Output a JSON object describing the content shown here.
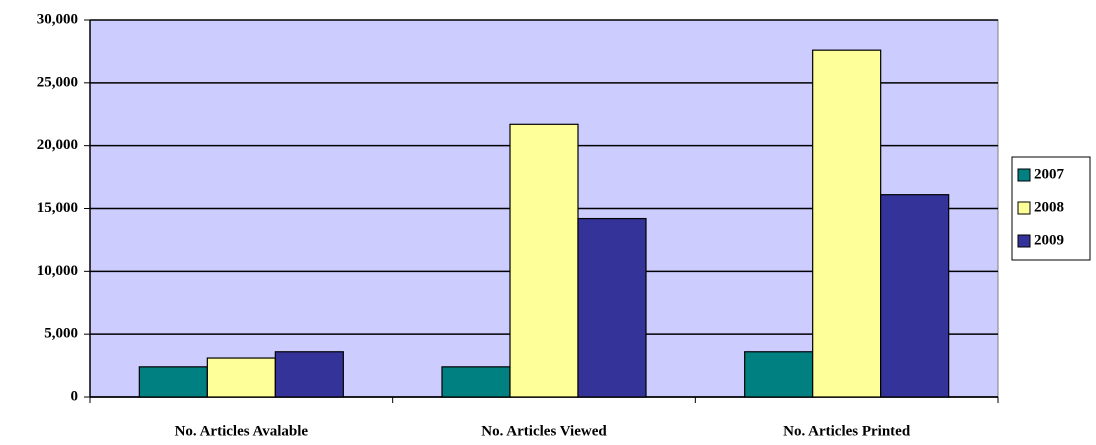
{
  "chart_data": {
    "type": "bar",
    "categories": [
      "No. Articles Avalable",
      "No. Articles Viewed",
      "No. Articles Printed"
    ],
    "series": [
      {
        "name": "2007",
        "color": "#008080",
        "values": [
          2400,
          2400,
          3600
        ]
      },
      {
        "name": "2008",
        "color": "#ffff99",
        "values": [
          3100,
          21700,
          27600
        ]
      },
      {
        "name": "2009",
        "color": "#333399",
        "values": [
          3600,
          14200,
          16100
        ]
      }
    ],
    "ylim": [
      0,
      30000
    ],
    "yticks": [
      0,
      {
        "value": 5000,
        "label": "5,000"
      },
      {
        "value": 10000,
        "label": "10,000"
      },
      {
        "value": 15000,
        "label": "15,000"
      },
      {
        "value": 20000,
        "label": "20,000"
      },
      {
        "value": 25000,
        "label": "25,000"
      },
      {
        "value": 30000,
        "label": "30,000"
      }
    ],
    "grid": true,
    "legend": "right",
    "plot_background": "#ccccff"
  }
}
